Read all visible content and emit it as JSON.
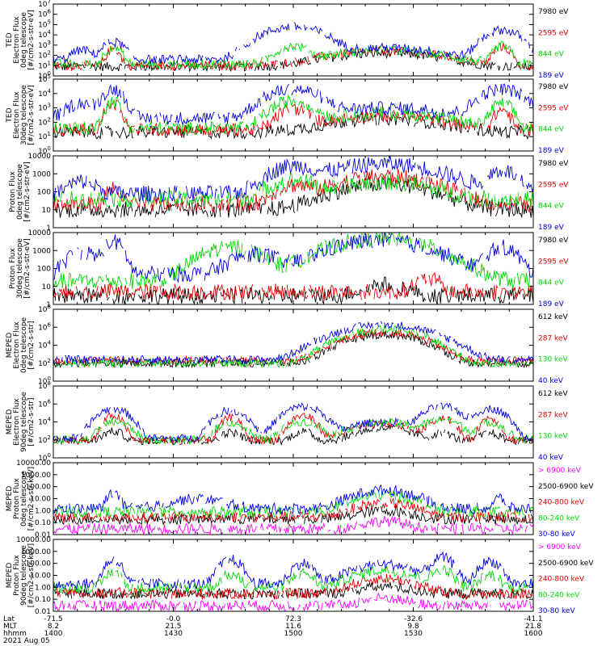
{
  "colors": {
    "black": "#000000",
    "red": "#e00000",
    "green": "#00d800",
    "blue": "#0000e0",
    "magenta": "#ff00ff"
  },
  "footer": {
    "row_labels": [
      "Lat",
      "MLT",
      "hhmm"
    ],
    "date": "2021 Aug 05",
    "ticks": [
      {
        "lat": "-71.5",
        "mlt": "8.2",
        "hhmm": "1400"
      },
      {
        "lat": "-0.0",
        "mlt": "21.5",
        "hhmm": "1430"
      },
      {
        "lat": "72.3",
        "mlt": "11.6",
        "hhmm": "1500"
      },
      {
        "lat": "-32.6",
        "mlt": "9.8",
        "hhmm": "1530"
      },
      {
        "lat": "-41.1",
        "mlt": "21.8",
        "hhmm": "1600"
      }
    ]
  },
  "chart_data": [
    {
      "type": "line",
      "ylabel": [
        "TED",
        "Electron Flux",
        "0deg telescope",
        "[#/cm2-s-str-eV]"
      ],
      "yscale": "log",
      "ylim": [
        1,
        10000000
      ],
      "ytick_labels": [
        "10^0",
        "10^1",
        "10^2",
        "10^3",
        "10^4",
        "10^5",
        "10^6",
        "10^7"
      ],
      "legend": [
        {
          "label": "7980 eV",
          "color": "black"
        },
        {
          "label": "2595 eV",
          "color": "red"
        },
        {
          "label": "844 eV",
          "color": "green"
        },
        {
          "label": "189 eV",
          "color": "blue"
        }
      ],
      "series": [
        {
          "name": "7980 eV",
          "color": "black",
          "base": 8,
          "peaks": [
            [
              0.69,
              0.11,
              150
            ]
          ]
        },
        {
          "name": "2595 eV",
          "color": "red",
          "base": 10,
          "peaks": [
            [
              0.125,
              0.012,
              400
            ],
            [
              0.69,
              0.11,
              250
            ],
            [
              0.935,
              0.015,
              700
            ]
          ]
        },
        {
          "name": "844 eV",
          "color": "green",
          "base": 15,
          "peaks": [
            [
              0.125,
              0.015,
              600
            ],
            [
              0.5,
              0.03,
              800
            ],
            [
              0.69,
              0.11,
              300
            ],
            [
              0.935,
              0.015,
              900
            ]
          ]
        },
        {
          "name": "189 eV",
          "color": "blue",
          "base": 40,
          "peaks": [
            [
              0.06,
              0.02,
              300
            ],
            [
              0.125,
              0.02,
              2000
            ],
            [
              0.5,
              0.05,
              60000
            ],
            [
              0.69,
              0.11,
              500
            ],
            [
              0.935,
              0.03,
              30000
            ]
          ]
        }
      ]
    },
    {
      "type": "line",
      "ylabel": [
        "TED",
        "Electron Flux",
        "30deg telescope",
        "[#/cm2-s-str-eV]"
      ],
      "yscale": "log",
      "ylim": [
        1,
        100000
      ],
      "ytick_labels": [
        "10^0",
        "10^1",
        "10^2",
        "10^3",
        "10^4",
        "10^5"
      ],
      "legend": [
        {
          "label": "7980 eV",
          "color": "black"
        },
        {
          "label": "2595 eV",
          "color": "red"
        },
        {
          "label": "844 eV",
          "color": "green"
        },
        {
          "label": "189 eV",
          "color": "blue"
        }
      ],
      "series": [
        {
          "name": "7980 eV",
          "color": "black",
          "base": 20,
          "peaks": [
            [
              0.69,
              0.12,
              150
            ]
          ]
        },
        {
          "name": "2595 eV",
          "color": "red",
          "base": 30,
          "peaks": [
            [
              0.125,
              0.015,
              2000
            ],
            [
              0.5,
              0.03,
              800
            ],
            [
              0.69,
              0.12,
              250
            ],
            [
              0.935,
              0.015,
              700
            ]
          ]
        },
        {
          "name": "844 eV",
          "color": "green",
          "base": 40,
          "peaks": [
            [
              0.125,
              0.015,
              3000
            ],
            [
              0.5,
              0.04,
              3000
            ],
            [
              0.69,
              0.12,
              400
            ],
            [
              0.935,
              0.02,
              2000
            ]
          ]
        },
        {
          "name": "189 eV",
          "color": "blue",
          "base": 200,
          "peaks": [
            [
              0.06,
              0.03,
              2000
            ],
            [
              0.125,
              0.02,
              20000
            ],
            [
              0.5,
              0.05,
              20000
            ],
            [
              0.69,
              0.14,
              800
            ],
            [
              0.935,
              0.04,
              20000
            ]
          ]
        }
      ]
    },
    {
      "type": "line",
      "ylabel": [
        "Proton Flux",
        "0deg telescope",
        "[#/cm2-s-str-eV]"
      ],
      "yscale": "log",
      "ylim": [
        1,
        10000
      ],
      "ytick_labels": [
        "1",
        "10",
        "100",
        "1000",
        "10000"
      ],
      "legend": [
        {
          "label": "7980 eV",
          "color": "black"
        },
        {
          "label": "2595 eV",
          "color": "red"
        },
        {
          "label": "844 eV",
          "color": "green"
        },
        {
          "label": "189 eV",
          "color": "blue"
        }
      ],
      "series": [
        {
          "name": "7980 eV",
          "color": "black",
          "base": 10,
          "peaks": [
            [
              0.69,
              0.1,
              250
            ]
          ]
        },
        {
          "name": "2595 eV",
          "color": "red",
          "base": 20,
          "peaks": [
            [
              0.125,
              0.015,
              150
            ],
            [
              0.5,
              0.04,
              200
            ],
            [
              0.69,
              0.1,
              700
            ]
          ]
        },
        {
          "name": "844 eV",
          "color": "green",
          "base": 40,
          "peaks": [
            [
              0.5,
              0.05,
              400
            ],
            [
              0.69,
              0.1,
              300
            ]
          ]
        },
        {
          "name": "189 eV",
          "color": "blue",
          "base": 80,
          "peaks": [
            [
              0.06,
              0.03,
              300
            ],
            [
              0.5,
              0.05,
              2500
            ],
            [
              0.69,
              0.11,
              3500
            ],
            [
              0.935,
              0.03,
              1500
            ]
          ]
        }
      ]
    },
    {
      "type": "line",
      "ylabel": [
        "Proton Flux",
        "30deg telescope",
        "[#/cm2-s-str-eV]"
      ],
      "yscale": "log",
      "ylim": [
        1,
        10000
      ],
      "ytick_labels": [
        "1",
        "10",
        "100",
        "1000",
        "10000"
      ],
      "legend": [
        {
          "label": "7980 eV",
          "color": "black"
        },
        {
          "label": "2595 eV",
          "color": "red"
        },
        {
          "label": "844 eV",
          "color": "green"
        },
        {
          "label": "189 eV",
          "color": "blue"
        }
      ],
      "series": [
        {
          "name": "7980 eV",
          "color": "black",
          "base": 3,
          "peaks": [
            [
              0.69,
              0.05,
              10
            ]
          ]
        },
        {
          "name": "2595 eV",
          "color": "red",
          "base": 5,
          "peaks": [
            [
              0.78,
              0.03,
              20
            ]
          ]
        },
        {
          "name": "844 eV",
          "color": "green",
          "base": 20,
          "peaks": [
            [
              0.37,
              0.06,
              1500
            ],
            [
              0.68,
              0.1,
              4500
            ]
          ]
        },
        {
          "name": "189 eV",
          "color": "blue",
          "base": 50,
          "peaks": [
            [
              0.06,
              0.03,
              800
            ],
            [
              0.125,
              0.02,
              3000
            ],
            [
              0.42,
              0.05,
              600
            ],
            [
              0.68,
              0.1,
              3500
            ],
            [
              0.935,
              0.03,
              1500
            ]
          ]
        }
      ]
    },
    {
      "type": "line",
      "ylabel": [
        "MEPED",
        "Electron Flux",
        "0deg telescope",
        "[#/cm2-s-str]"
      ],
      "yscale": "log",
      "ylim": [
        1,
        100000000
      ],
      "ytick_labels": [
        "10^0",
        "10^2",
        "10^4",
        "10^6",
        "10^8"
      ],
      "legend": [
        {
          "label": "612 keV",
          "color": "black"
        },
        {
          "label": "287 keV",
          "color": "red"
        },
        {
          "label": "130 keV",
          "color": "green"
        },
        {
          "label": "40 keV",
          "color": "blue"
        }
      ],
      "series": [
        {
          "name": "612 keV",
          "color": "black",
          "base": 100,
          "peaks": [
            [
              0.69,
              0.06,
              150000
            ]
          ]
        },
        {
          "name": "287 keV",
          "color": "red",
          "base": 200,
          "peaks": [
            [
              0.69,
              0.06,
              300000
            ]
          ]
        },
        {
          "name": "130 keV",
          "color": "green",
          "base": 100,
          "peaks": [
            [
              0.69,
              0.06,
              600000
            ]
          ]
        },
        {
          "name": "40 keV",
          "color": "blue",
          "base": 250,
          "peaks": [
            [
              0.69,
              0.07,
              2000000
            ]
          ]
        }
      ]
    },
    {
      "type": "line",
      "ylabel": [
        "MEPED",
        "Electron Flux",
        "90deg telescope",
        "[#/cm2-s-str]"
      ],
      "yscale": "log",
      "ylim": [
        1,
        100000000
      ],
      "ytick_labels": [
        "10^0",
        "10^2",
        "10^4",
        "10^6",
        "10^8"
      ],
      "legend": [
        {
          "label": "612 keV",
          "color": "black"
        },
        {
          "label": "287 keV",
          "color": "red"
        },
        {
          "label": "130 keV",
          "color": "green"
        },
        {
          "label": "40 keV",
          "color": "blue"
        }
      ],
      "series": [
        {
          "name": "612 keV",
          "color": "black",
          "base": 80,
          "peaks": [
            [
              0.125,
              0.02,
              800
            ],
            [
              0.37,
              0.02,
              600
            ],
            [
              0.52,
              0.02,
              800
            ],
            [
              0.69,
              0.05,
              2000
            ],
            [
              0.81,
              0.02,
              600
            ],
            [
              0.91,
              0.02,
              500
            ]
          ]
        },
        {
          "name": "287 keV",
          "color": "red",
          "base": 100,
          "peaks": [
            [
              0.125,
              0.015,
              50000
            ],
            [
              0.37,
              0.015,
              30000
            ],
            [
              0.52,
              0.02,
              50000
            ],
            [
              0.69,
              0.06,
              5000
            ],
            [
              0.81,
              0.02,
              30000
            ],
            [
              0.91,
              0.015,
              30000
            ]
          ]
        },
        {
          "name": "130 keV",
          "color": "green",
          "base": 100,
          "peaks": [
            [
              0.13,
              0.025,
              10000
            ],
            [
              0.37,
              0.025,
              8000
            ],
            [
              0.52,
              0.03,
              10000
            ],
            [
              0.69,
              0.06,
              8000
            ],
            [
              0.81,
              0.03,
              20000
            ],
            [
              0.91,
              0.025,
              8000
            ]
          ]
        },
        {
          "name": "40 keV",
          "color": "blue",
          "base": 150,
          "peaks": [
            [
              0.125,
              0.025,
              300000
            ],
            [
              0.37,
              0.025,
              200000
            ],
            [
              0.52,
              0.03,
              500000
            ],
            [
              0.69,
              0.06,
              10000
            ],
            [
              0.81,
              0.03,
              500000
            ],
            [
              0.91,
              0.025,
              300000
            ]
          ]
        }
      ]
    },
    {
      "type": "line",
      "ylabel": [
        "MEPED",
        "Proton Flux",
        "0deg telescope",
        "[#/cm2-s-str-keV]"
      ],
      "yscale": "log",
      "ylim": [
        0.01,
        10000
      ],
      "ytick_labels": [
        "0.01",
        "0.10",
        "1.00",
        "10.00",
        "100.00",
        "1000.00",
        "10000.00"
      ],
      "legend": [
        {
          "label": "> 6900 keV",
          "color": "magenta"
        },
        {
          "label": "2500-6900 keV",
          "color": "black"
        },
        {
          "label": "240-800 keV",
          "color": "red"
        },
        {
          "label": "80-240 keV",
          "color": "green"
        },
        {
          "label": "30-80 keV",
          "color": "blue"
        }
      ],
      "series": [
        {
          "name": "> 6900 keV",
          "color": "magenta",
          "base": 0.03,
          "peaks": [
            [
              0.69,
              0.05,
              0.1
            ]
          ]
        },
        {
          "name": "2500-6900 keV",
          "color": "black",
          "base": 0.2,
          "peaks": [
            [
              0.69,
              0.06,
              0.8
            ]
          ]
        },
        {
          "name": "240-800 keV",
          "color": "red",
          "base": 0.3,
          "peaks": [
            [
              0.69,
              0.06,
              4
            ]
          ]
        },
        {
          "name": "80-240 keV",
          "color": "green",
          "base": 0.8,
          "peaks": [
            [
              0.69,
              0.06,
              20
            ]
          ]
        },
        {
          "name": "30-80 keV",
          "color": "blue",
          "base": 1.5,
          "peaks": [
            [
              0.125,
              0.012,
              30
            ],
            [
              0.3,
              0.06,
              8
            ],
            [
              0.69,
              0.06,
              50
            ],
            [
              0.93,
              0.012,
              10
            ]
          ]
        }
      ]
    },
    {
      "type": "line",
      "ylabel": [
        "MEPED",
        "Proton Flux",
        "90deg telescope",
        "[#/cm2-s-str-keV]"
      ],
      "yscale": "log",
      "ylim": [
        0.01,
        10000
      ],
      "ytick_labels": [
        "0.01",
        "0.10",
        "1.00",
        "10.00",
        "100.00",
        "1000.00",
        "10000.00"
      ],
      "legend": [
        {
          "label": "> 6900 keV",
          "color": "magenta"
        },
        {
          "label": "2500-6900 keV",
          "color": "black"
        },
        {
          "label": "240-800 keV",
          "color": "red"
        },
        {
          "label": "80-240 keV",
          "color": "green"
        },
        {
          "label": "30-80 keV",
          "color": "blue"
        }
      ],
      "series": [
        {
          "name": "> 6900 keV",
          "color": "magenta",
          "base": 0.03,
          "peaks": [
            [
              0.69,
              0.05,
              0.1
            ]
          ]
        },
        {
          "name": "2500-6900 keV",
          "color": "black",
          "base": 0.3,
          "peaks": [
            [
              0.69,
              0.06,
              0.8
            ]
          ]
        },
        {
          "name": "240-800 keV",
          "color": "red",
          "base": 0.3,
          "peaks": [
            [
              0.125,
              0.01,
              0.3
            ],
            [
              0.69,
              0.06,
              5
            ]
          ]
        },
        {
          "name": "80-240 keV",
          "color": "green",
          "base": 1.0,
          "peaks": [
            [
              0.125,
              0.015,
              20
            ],
            [
              0.37,
              0.02,
              10
            ],
            [
              0.52,
              0.02,
              15
            ],
            [
              0.69,
              0.06,
              25
            ],
            [
              0.81,
              0.02,
              30
            ],
            [
              0.91,
              0.02,
              10
            ]
          ]
        },
        {
          "name": "30-80 keV",
          "color": "blue",
          "base": 2.0,
          "peaks": [
            [
              0.125,
              0.015,
              200
            ],
            [
              0.37,
              0.02,
              200
            ],
            [
              0.52,
              0.02,
              100
            ],
            [
              0.69,
              0.06,
              80
            ],
            [
              0.81,
              0.02,
              300
            ],
            [
              0.91,
              0.02,
              150
            ]
          ]
        }
      ]
    }
  ]
}
